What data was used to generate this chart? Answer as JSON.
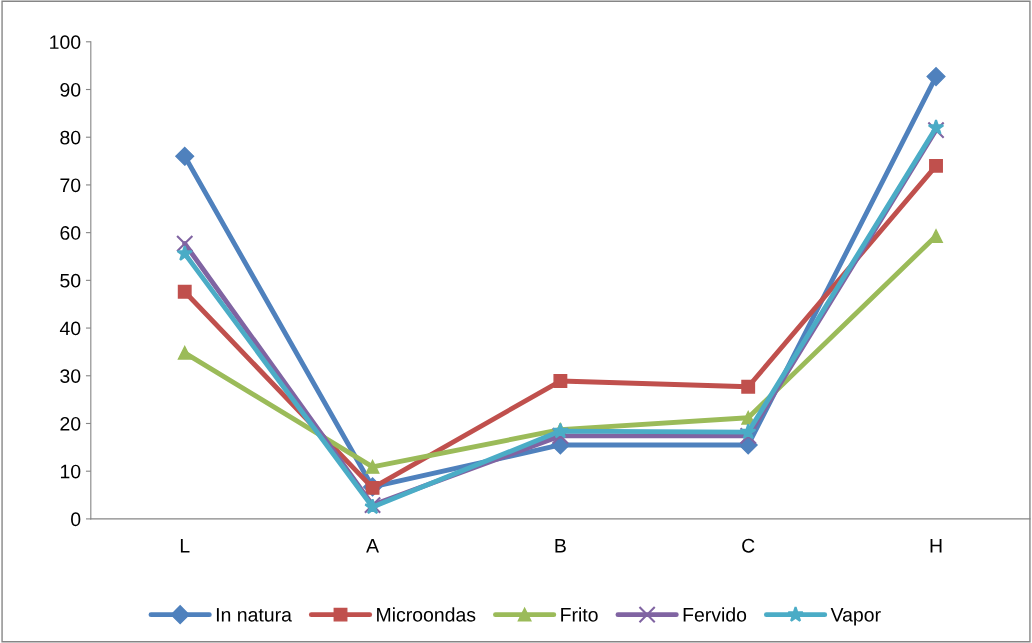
{
  "chart_data": {
    "type": "line",
    "categories": [
      "L",
      "A",
      "B",
      "C",
      "H"
    ],
    "series": [
      {
        "name": "In natura",
        "color": "#4f81bd",
        "marker": "diamond",
        "values": [
          76,
          6.7,
          15.5,
          15.5,
          92.7
        ]
      },
      {
        "name": "Microondas",
        "color": "#c0504d",
        "marker": "square",
        "values": [
          47.6,
          6.5,
          28.9,
          27.7,
          74
        ]
      },
      {
        "name": "Frito",
        "color": "#9bbb59",
        "marker": "triangle",
        "values": [
          34.8,
          10.9,
          18.7,
          21.2,
          59.3
        ]
      },
      {
        "name": "Fervido",
        "color": "#8064a2",
        "marker": "cross",
        "values": [
          57.7,
          2.9,
          17.4,
          17.4,
          81.5
        ]
      },
      {
        "name": "Vapor",
        "color": "#4bacc6",
        "marker": "star",
        "values": [
          55.6,
          2.5,
          18.4,
          18.2,
          82
        ]
      }
    ],
    "ylim": [
      0,
      100
    ],
    "yticks": [
      0,
      10,
      20,
      30,
      40,
      50,
      60,
      70,
      80,
      90,
      100
    ],
    "grid": false,
    "legend": "bottom",
    "line_style": "solid"
  }
}
